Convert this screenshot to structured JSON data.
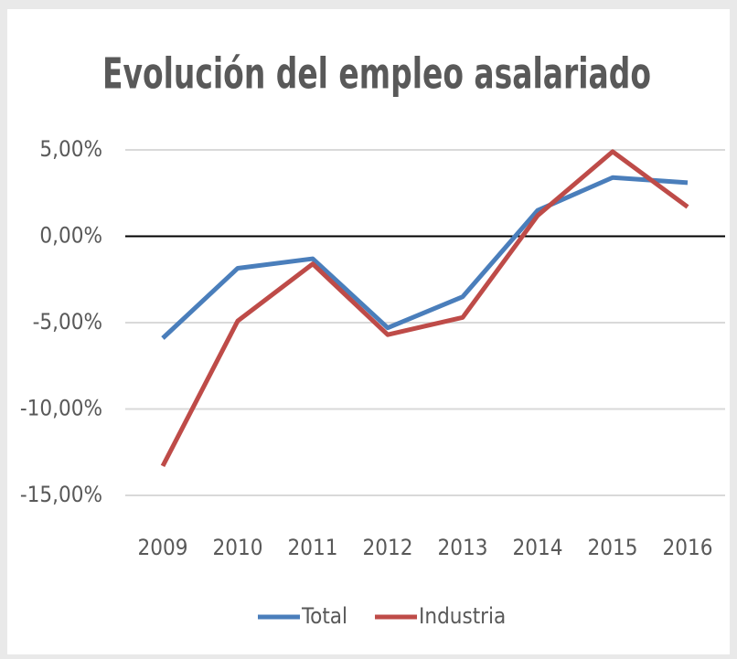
{
  "chart_data": {
    "type": "line",
    "title": "Evolución del empleo asalariado",
    "categories": [
      "2009",
      "2010",
      "2011",
      "2012",
      "2013",
      "2014",
      "2015",
      "2016"
    ],
    "series": [
      {
        "name": "Total",
        "color": "#4a7ebb",
        "values": [
          -5.9,
          -1.85,
          -1.3,
          -5.3,
          -3.5,
          1.5,
          3.4,
          3.1
        ]
      },
      {
        "name": "Industria",
        "color": "#be4b48",
        "values": [
          -13.3,
          -4.9,
          -1.6,
          -5.7,
          -4.7,
          1.2,
          4.9,
          1.7
        ]
      }
    ],
    "ylim": [
      -15,
      5
    ],
    "yticks": [
      {
        "value": -15,
        "label": "-15,00%"
      },
      {
        "value": -10,
        "label": "-10,00%"
      },
      {
        "value": -5,
        "label": "-5,00%"
      },
      {
        "value": 0,
        "label": "0,00%"
      },
      {
        "value": 5,
        "label": "5,00%"
      }
    ],
    "grid": true,
    "legend": "bottom"
  }
}
